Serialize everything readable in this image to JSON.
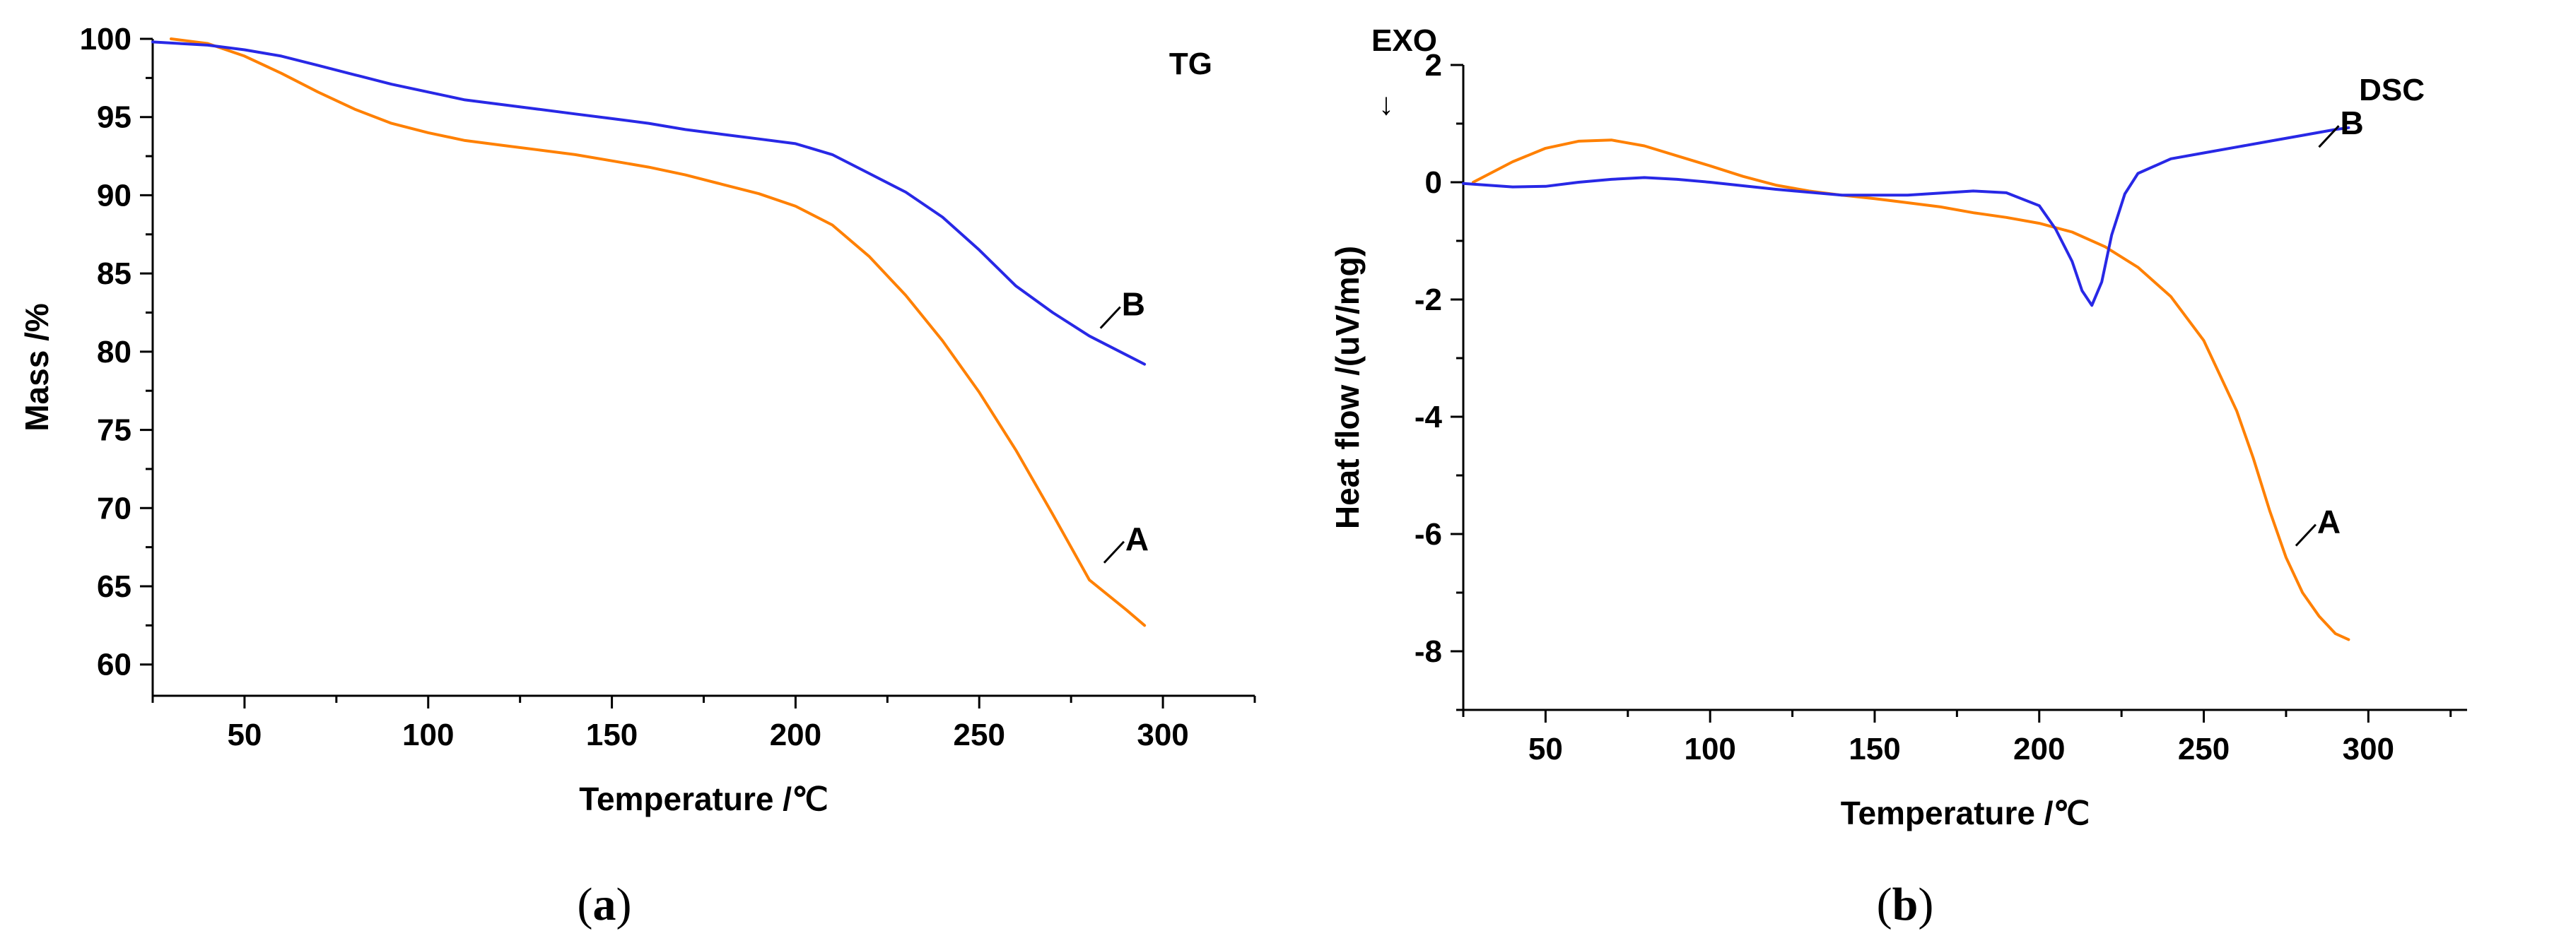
{
  "chart_data": [
    {
      "type": "line",
      "panel": "a",
      "caption_letter": "a",
      "title": "TG",
      "xlabel": "Temperature /℃",
      "ylabel": "Mass /%",
      "xlim": [
        25,
        325
      ],
      "ylim": [
        58,
        100
      ],
      "xticks": [
        50,
        100,
        150,
        200,
        250,
        300
      ],
      "yticks": [
        60,
        65,
        70,
        75,
        80,
        85,
        90,
        95,
        100
      ],
      "series": [
        {
          "name": "A",
          "color": "#ff8000",
          "x": [
            30,
            40,
            50,
            60,
            70,
            80,
            90,
            100,
            110,
            120,
            130,
            140,
            150,
            160,
            170,
            180,
            190,
            200,
            210,
            220,
            230,
            240,
            250,
            260,
            270,
            280,
            290,
            295
          ],
          "y": [
            100,
            99.7,
            98.9,
            97.8,
            96.6,
            95.5,
            94.6,
            94.0,
            93.5,
            93.2,
            92.9,
            92.6,
            92.2,
            91.8,
            91.3,
            90.7,
            90.1,
            89.3,
            88.1,
            86.1,
            83.6,
            80.7,
            77.4,
            73.7,
            69.6,
            65.4,
            63.5,
            62.5
          ],
          "label_at": [
            284,
            66.5
          ]
        },
        {
          "name": "B",
          "color": "#2828e6",
          "x": [
            25,
            40,
            50,
            60,
            70,
            80,
            90,
            100,
            110,
            120,
            130,
            140,
            150,
            160,
            170,
            180,
            190,
            200,
            210,
            220,
            230,
            240,
            250,
            260,
            270,
            280,
            290,
            295
          ],
          "y": [
            99.8,
            99.6,
            99.3,
            98.9,
            98.3,
            97.7,
            97.1,
            96.6,
            96.1,
            95.8,
            95.5,
            95.2,
            94.9,
            94.6,
            94.2,
            93.9,
            93.6,
            93.3,
            92.6,
            91.4,
            90.2,
            88.6,
            86.5,
            84.2,
            82.5,
            81.0,
            79.8,
            79.2
          ],
          "label_at": [
            283,
            81.5
          ]
        }
      ]
    },
    {
      "type": "line",
      "panel": "b",
      "caption_letter": "b",
      "title": "DSC",
      "corner_label": "EXO",
      "corner_arrow": "↓",
      "xlabel": "Temperature /℃",
      "ylabel": "Heat flow /(uV/mg)",
      "xlim": [
        25,
        330
      ],
      "ylim": [
        -9,
        2
      ],
      "xticks": [
        50,
        100,
        150,
        200,
        250,
        300
      ],
      "yticks": [
        -8,
        -6,
        -4,
        -2,
        0,
        2
      ],
      "series": [
        {
          "name": "A",
          "color": "#ff8000",
          "x": [
            28,
            40,
            50,
            60,
            70,
            80,
            90,
            100,
            110,
            120,
            130,
            140,
            150,
            160,
            170,
            180,
            190,
            200,
            210,
            220,
            230,
            240,
            250,
            260,
            265,
            270,
            275,
            280,
            285,
            290,
            294
          ],
          "y": [
            0.0,
            0.35,
            0.58,
            0.7,
            0.72,
            0.62,
            0.45,
            0.28,
            0.1,
            -0.05,
            -0.15,
            -0.22,
            -0.28,
            -0.35,
            -0.42,
            -0.52,
            -0.6,
            -0.7,
            -0.85,
            -1.1,
            -1.45,
            -1.95,
            -2.7,
            -3.9,
            -4.7,
            -5.6,
            -6.4,
            -7.0,
            -7.4,
            -7.7,
            -7.8
          ],
          "label_at": [
            278,
            -6.2
          ]
        },
        {
          "name": "B",
          "color": "#2828e6",
          "x": [
            25,
            40,
            50,
            60,
            70,
            80,
            90,
            100,
            120,
            140,
            160,
            180,
            190,
            200,
            205,
            210,
            213,
            216,
            219,
            222,
            226,
            230,
            240,
            250,
            260,
            270,
            280,
            290,
            294
          ],
          "y": [
            -0.02,
            -0.08,
            -0.07,
            0.0,
            0.05,
            0.08,
            0.05,
            0.0,
            -0.12,
            -0.22,
            -0.22,
            -0.15,
            -0.18,
            -0.4,
            -0.8,
            -1.35,
            -1.85,
            -2.1,
            -1.7,
            -0.9,
            -0.2,
            0.15,
            0.4,
            0.5,
            0.6,
            0.7,
            0.8,
            0.9,
            0.93
          ],
          "label_at": [
            285,
            0.6
          ]
        }
      ]
    }
  ]
}
